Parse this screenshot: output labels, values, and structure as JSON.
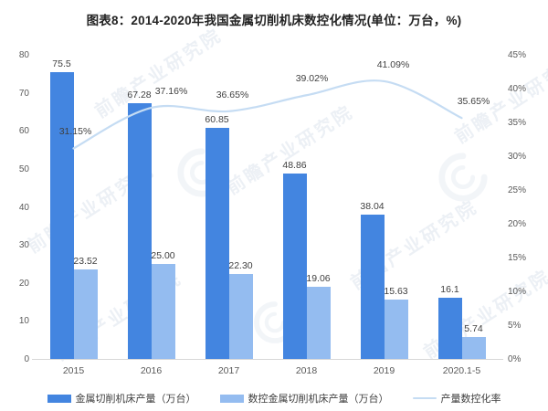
{
  "title": "图表8：2014-2020年我国金属切削机床数控化情况(单位：万台，%)",
  "watermark": {
    "text": "前瞻产业研究院"
  },
  "legend": [
    {
      "label": "金属切削机床产量（万台）",
      "swatch": "bar",
      "color": "#4385e0"
    },
    {
      "label": "数控金属切削机床产量（万台）",
      "swatch": "bar",
      "color": "#94bcf0"
    },
    {
      "label": "产量数控化率",
      "swatch": "line",
      "color": "#c5dcf3"
    }
  ],
  "chart_data": {
    "type": "bar+line combo",
    "title": "图表8：2014-2020年我国金属切削机床数控化情况(单位：万台，%)",
    "categories": [
      "2015",
      "2016",
      "2017",
      "2018",
      "2019",
      "2020.1-5"
    ],
    "series": [
      {
        "name": "金属切削机床产量（万台）",
        "type": "bar",
        "axis": "left",
        "color": "#4385e0",
        "values": [
          75.5,
          67.28,
          60.85,
          48.86,
          38.04,
          16.1
        ],
        "labels": [
          "75.5",
          "67.28",
          "60.85",
          "48.86",
          "38.04",
          "16.1"
        ]
      },
      {
        "name": "数控金属切削机床产量（万台）",
        "type": "bar",
        "axis": "left",
        "color": "#94bcf0",
        "values": [
          23.52,
          25.0,
          22.3,
          19.06,
          15.63,
          5.74
        ],
        "labels": [
          "23.52",
          "25.00",
          "22.30",
          "19.06",
          "15.63",
          "5.74"
        ]
      },
      {
        "name": "产量数控化率",
        "type": "line",
        "axis": "right",
        "color": "#c5dcf3",
        "values": [
          31.15,
          37.16,
          36.65,
          39.02,
          41.09,
          35.65
        ],
        "labels": [
          "31.15%",
          "37.16%",
          "36.65%",
          "39.02%",
          "41.09%",
          "35.65%"
        ]
      }
    ],
    "left_axis": {
      "min": 0,
      "max": 80,
      "tick_labels": [
        "0",
        "10",
        "20",
        "30",
        "40",
        "50",
        "60",
        "70",
        "80"
      ]
    },
    "right_axis": {
      "min": 0,
      "max": 45,
      "tick_labels": [
        "0%",
        "5%",
        "10%",
        "15%",
        "20%",
        "25%",
        "30%",
        "35%",
        "40%",
        "45%"
      ]
    },
    "grid": false,
    "legend_position": "bottom"
  }
}
